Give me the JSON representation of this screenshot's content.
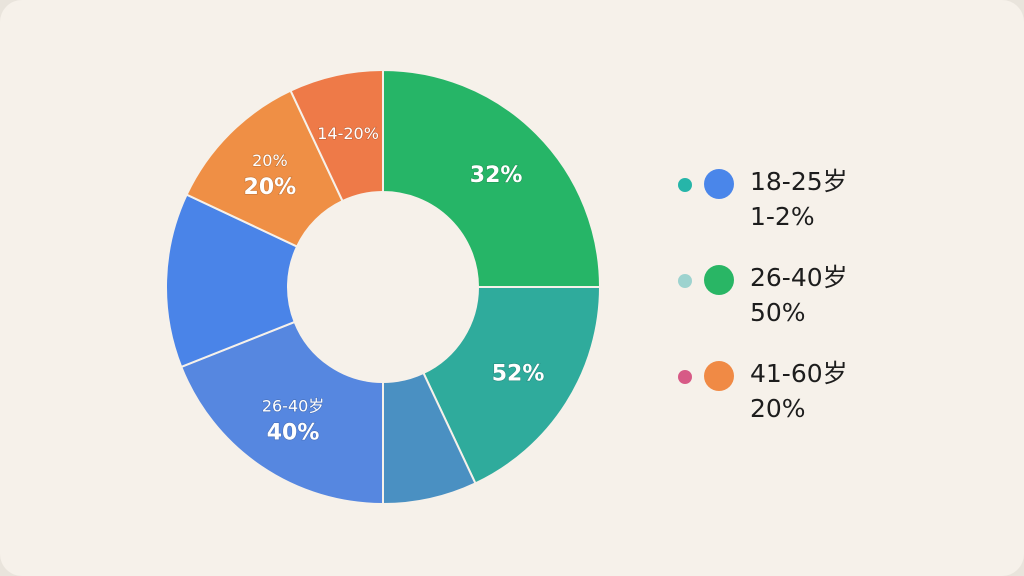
{
  "chart_data": {
    "type": "pie",
    "title": "",
    "slices": [
      {
        "label": "32%",
        "value": 0.25,
        "color": "#26b567"
      },
      {
        "label": "52%",
        "value": 0.18,
        "color": "#2fab9c"
      },
      {
        "label": "",
        "value": 0.07,
        "color": "#4a90c2"
      },
      {
        "label": "40%",
        "sublabel": "26-40岁",
        "value": 0.19,
        "color": "#5687e0"
      },
      {
        "label": "",
        "value": 0.13,
        "color": "#4a84e8"
      },
      {
        "label": "20%",
        "sublabel": "20%",
        "value": 0.11,
        "color": "#ef8f45"
      },
      {
        "label": "14-20%",
        "value": 0.07,
        "color": "#ee7a48"
      }
    ],
    "legend": [
      {
        "small_color": "#26b5a9",
        "big_color": "#4a86ea",
        "label": "18-25岁",
        "value": "1-2%"
      },
      {
        "small_color": "#9dd3cf",
        "big_color": "#29b665",
        "label": "26-40岁",
        "value": "50%"
      },
      {
        "small_color": "#d75a86",
        "big_color": "#f08a45",
        "label": "41-60岁",
        "value": "20%"
      }
    ],
    "legend_position": "right"
  }
}
